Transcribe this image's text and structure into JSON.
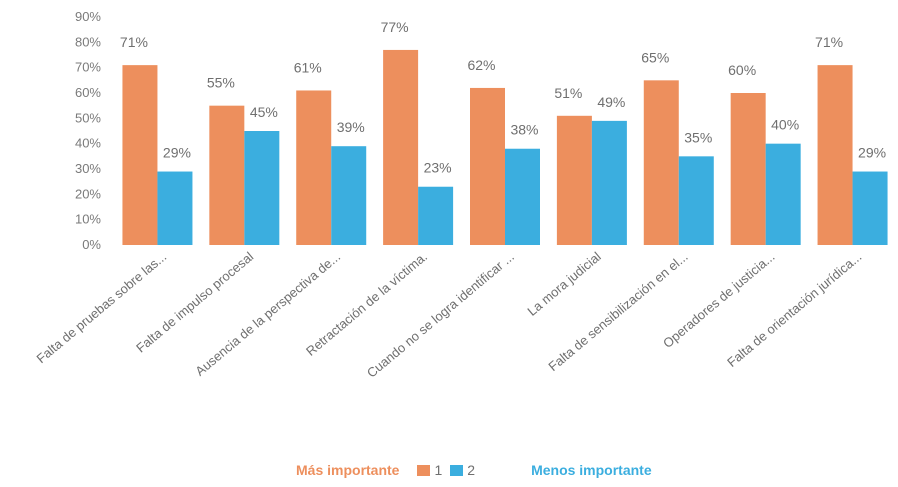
{
  "chart_data": {
    "type": "bar",
    "categories": [
      "Falta de pruebas sobre las...",
      "Falta de impulso procesal",
      "Ausencia de la perspectiva de...",
      "Retractación  de la víctima.",
      "Cuando no se logra identificar ...",
      "La mora judicial",
      "Falta de sensibilización  en el...",
      "Operadores de justicia...",
      "Falta de orientación  jurídica..."
    ],
    "series": [
      {
        "name": "1",
        "values": [
          71,
          55,
          61,
          77,
          62,
          51,
          65,
          60,
          71
        ],
        "color": "#ED8F5D"
      },
      {
        "name": "2",
        "values": [
          29,
          45,
          39,
          23,
          38,
          49,
          35,
          40,
          29
        ],
        "color": "#3BAEDF"
      }
    ],
    "data_labels": [
      [
        "71%",
        "55%",
        "61%",
        "77%",
        "62%",
        "51%",
        "65%",
        "60%",
        "71%"
      ],
      [
        "29%",
        "45%",
        "39%",
        "23%",
        "38%",
        "49%",
        "35%",
        "40%",
        "29%"
      ]
    ],
    "y_ticks": [
      "0%",
      "10%",
      "20%",
      "30%",
      "40%",
      "50%",
      "60%",
      "70%",
      "80%",
      "90%"
    ],
    "ylim": [
      0,
      90
    ],
    "grid": false,
    "legend": {
      "left_text": "Más importante",
      "right_text": "Menos importante",
      "left_color": "#ED8F5D",
      "right_color": "#3BAEDF",
      "entries": [
        "1",
        "2"
      ],
      "placement": "bottom"
    }
  }
}
